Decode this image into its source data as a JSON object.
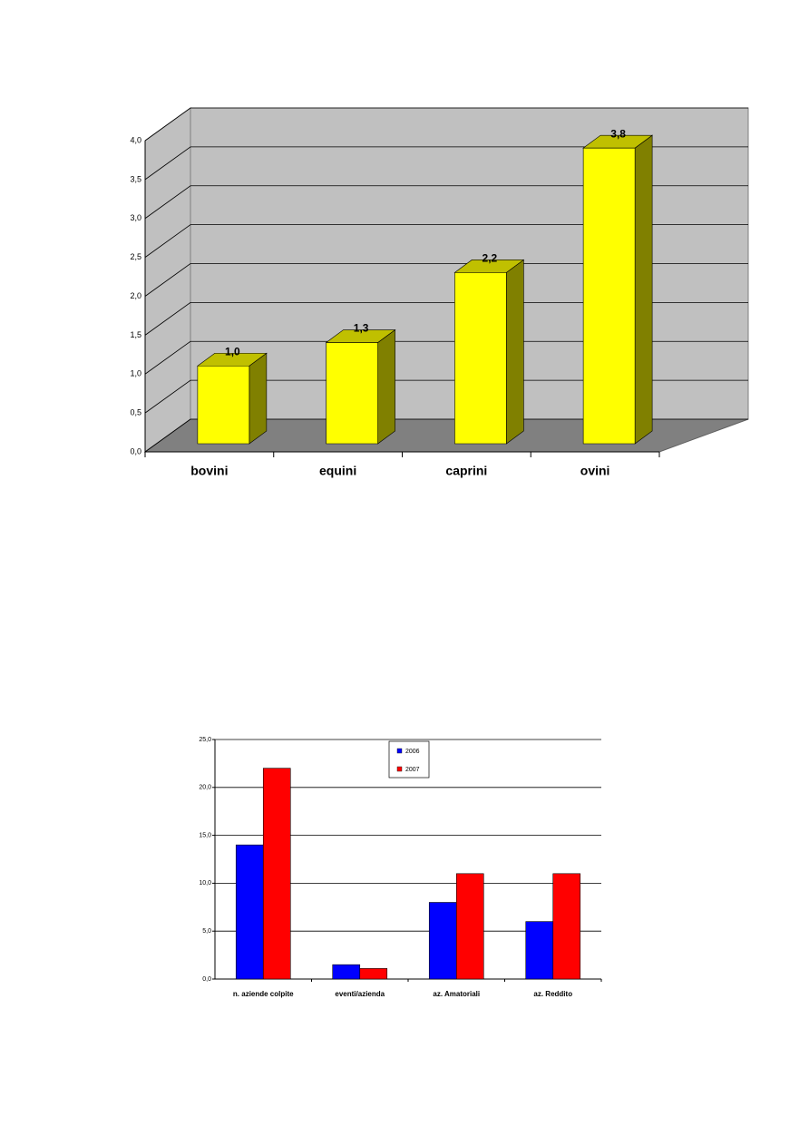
{
  "chart_data": [
    {
      "type": "bar3d",
      "categories": [
        "bovini",
        "equini",
        "caprini",
        "ovini"
      ],
      "values": [
        1.0,
        1.3,
        2.2,
        3.8
      ],
      "value_labels": [
        "1,0",
        "1,3",
        "2,2",
        "3,8"
      ],
      "color": "#ffff00",
      "ylim": [
        0,
        4
      ],
      "yticks": [
        {
          "value": 0,
          "label": "0,0"
        },
        {
          "value": 0.5,
          "label": "0,5"
        },
        {
          "value": 1,
          "label": "1,0"
        },
        {
          "value": 1.5,
          "label": "1,5"
        },
        {
          "value": 2,
          "label": "2,0"
        },
        {
          "value": 2.5,
          "label": "2,5"
        },
        {
          "value": 3,
          "label": "3,0"
        },
        {
          "value": 3.5,
          "label": "3,5"
        },
        {
          "value": 4,
          "label": "4,0"
        }
      ],
      "grid": true
    },
    {
      "type": "grouped_bar",
      "categories": [
        "n. aziende colpite",
        "eventi/azienda",
        "az. Amatoriali",
        "az. Reddito"
      ],
      "series": [
        {
          "name": "2006",
          "color": "#0000ff",
          "values": [
            14.0,
            1.5,
            8.0,
            6.0
          ]
        },
        {
          "name": "2007",
          "color": "#ff0000",
          "values": [
            22.0,
            1.1,
            11.0,
            11.0
          ]
        }
      ],
      "ylim": [
        0,
        25
      ],
      "yticks": [
        {
          "value": 0,
          "label": "0,0"
        },
        {
          "value": 5,
          "label": "5,0"
        },
        {
          "value": 10,
          "label": "10,0"
        },
        {
          "value": 15,
          "label": "15,0"
        },
        {
          "value": 20,
          "label": "20,0"
        },
        {
          "value": 25,
          "label": "25,0"
        }
      ],
      "grid": true,
      "legend": "top-center"
    }
  ]
}
